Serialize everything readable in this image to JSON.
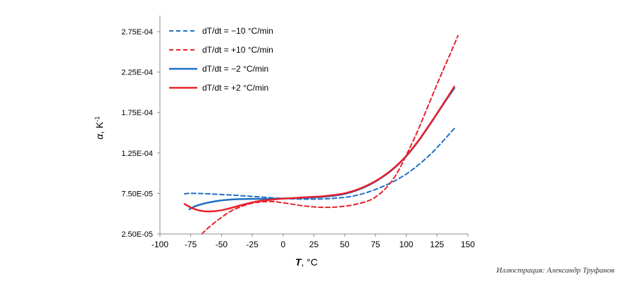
{
  "chart_data": {
    "type": "line",
    "xlabel_var": "T",
    "xlabel_unit": ", °C",
    "ylabel_var": "α",
    "ylabel_unit": ", K",
    "ylabel_sup": "-1",
    "xlim": [
      -100,
      150
    ],
    "ylim": [
      2.5e-05,
      0.000295
    ],
    "x_ticks": [
      -100,
      -75,
      -50,
      -25,
      0,
      25,
      50,
      75,
      100,
      125,
      150
    ],
    "y_ticks": [
      2.5e-05,
      7.5e-05,
      0.000125,
      0.000175,
      0.000225,
      0.000275
    ],
    "y_tick_labels": [
      "2.50E-05",
      "7.50E-05",
      "1.25E-04",
      "1.75E-04",
      "2.25E-04",
      "2.75E-04"
    ],
    "grid": false,
    "legend_position": "top-left",
    "series": [
      {
        "name": "dT/dt = −10 °C/min",
        "color": "#1f6fc5",
        "style": "dashed",
        "x": [
          -80,
          -75,
          -60,
          -40,
          -20,
          0,
          20,
          40,
          60,
          80,
          100,
          120,
          140
        ],
        "y": [
          7.45e-05,
          7.52e-05,
          7.45e-05,
          7.28e-05,
          7.08e-05,
          6.88e-05,
          6.8e-05,
          6.88e-05,
          7.28e-05,
          8.3e-05,
          9.9e-05,
          0.000124,
          0.000157
        ]
      },
      {
        "name": "dT/dt = +10 °C/min",
        "color": "#e8212b",
        "style": "dashed",
        "x": [
          -66,
          -60,
          -50,
          -40,
          -25,
          -10,
          0,
          15,
          30,
          45,
          60,
          75,
          90,
          105,
          115,
          125,
          135,
          142
        ],
        "y": [
          2.5e-05,
          3.35e-05,
          4.55e-05,
          5.5e-05,
          6.3e-05,
          6.5e-05,
          6.35e-05,
          6e-05,
          5.8e-05,
          5.85e-05,
          6.2e-05,
          7.05e-05,
          9.4e-05,
          0.000138,
          0.000173,
          0.00021,
          0.000245,
          0.00027
        ]
      },
      {
        "name": "dT/dt = −2 °C/min",
        "color": "#1f6fc5",
        "style": "solid",
        "x": [
          -76,
          -70,
          -60,
          -50,
          -40,
          -30,
          -20,
          -10,
          0,
          10,
          20,
          30,
          40,
          50,
          60,
          70,
          80,
          90,
          100,
          110,
          120,
          130,
          139
        ],
        "y": [
          5.55e-05,
          6e-05,
          6.4e-05,
          6.65e-05,
          6.78e-05,
          6.82e-05,
          6.83e-05,
          6.85e-05,
          6.88e-05,
          6.92e-05,
          6.98e-05,
          7.05e-05,
          7.2e-05,
          7.45e-05,
          7.9e-05,
          8.55e-05,
          9.45e-05,
          0.000106,
          0.000121,
          0.00014,
          0.000162,
          0.000185,
          0.000205
        ]
      },
      {
        "name": "dT/dt = +2 °C/min",
        "color": "#e8212b",
        "style": "solid",
        "x": [
          -80,
          -75,
          -70,
          -65,
          -60,
          -55,
          -50,
          -45,
          -40,
          -35,
          -30,
          -25,
          -20,
          -15,
          -10,
          -5,
          0,
          10,
          20,
          30,
          40,
          50,
          60,
          70,
          80,
          90,
          100,
          110,
          120,
          130,
          139
        ],
        "y": [
          6.2e-05,
          5.78e-05,
          5.48e-05,
          5.32e-05,
          5.28e-05,
          5.32e-05,
          5.43e-05,
          5.6e-05,
          5.8e-05,
          6.02e-05,
          6.22e-05,
          6.4e-05,
          6.55e-05,
          6.65e-05,
          6.72e-05,
          6.8e-05,
          6.86e-05,
          6.95e-05,
          7.05e-05,
          7.12e-05,
          7.28e-05,
          7.52e-05,
          7.96e-05,
          8.62e-05,
          9.5e-05,
          0.0001065,
          0.0001215,
          0.0001405,
          0.0001625,
          0.0001855,
          0.000207
        ]
      }
    ]
  },
  "credit": "Иллюстрация: Александр Труфанов"
}
